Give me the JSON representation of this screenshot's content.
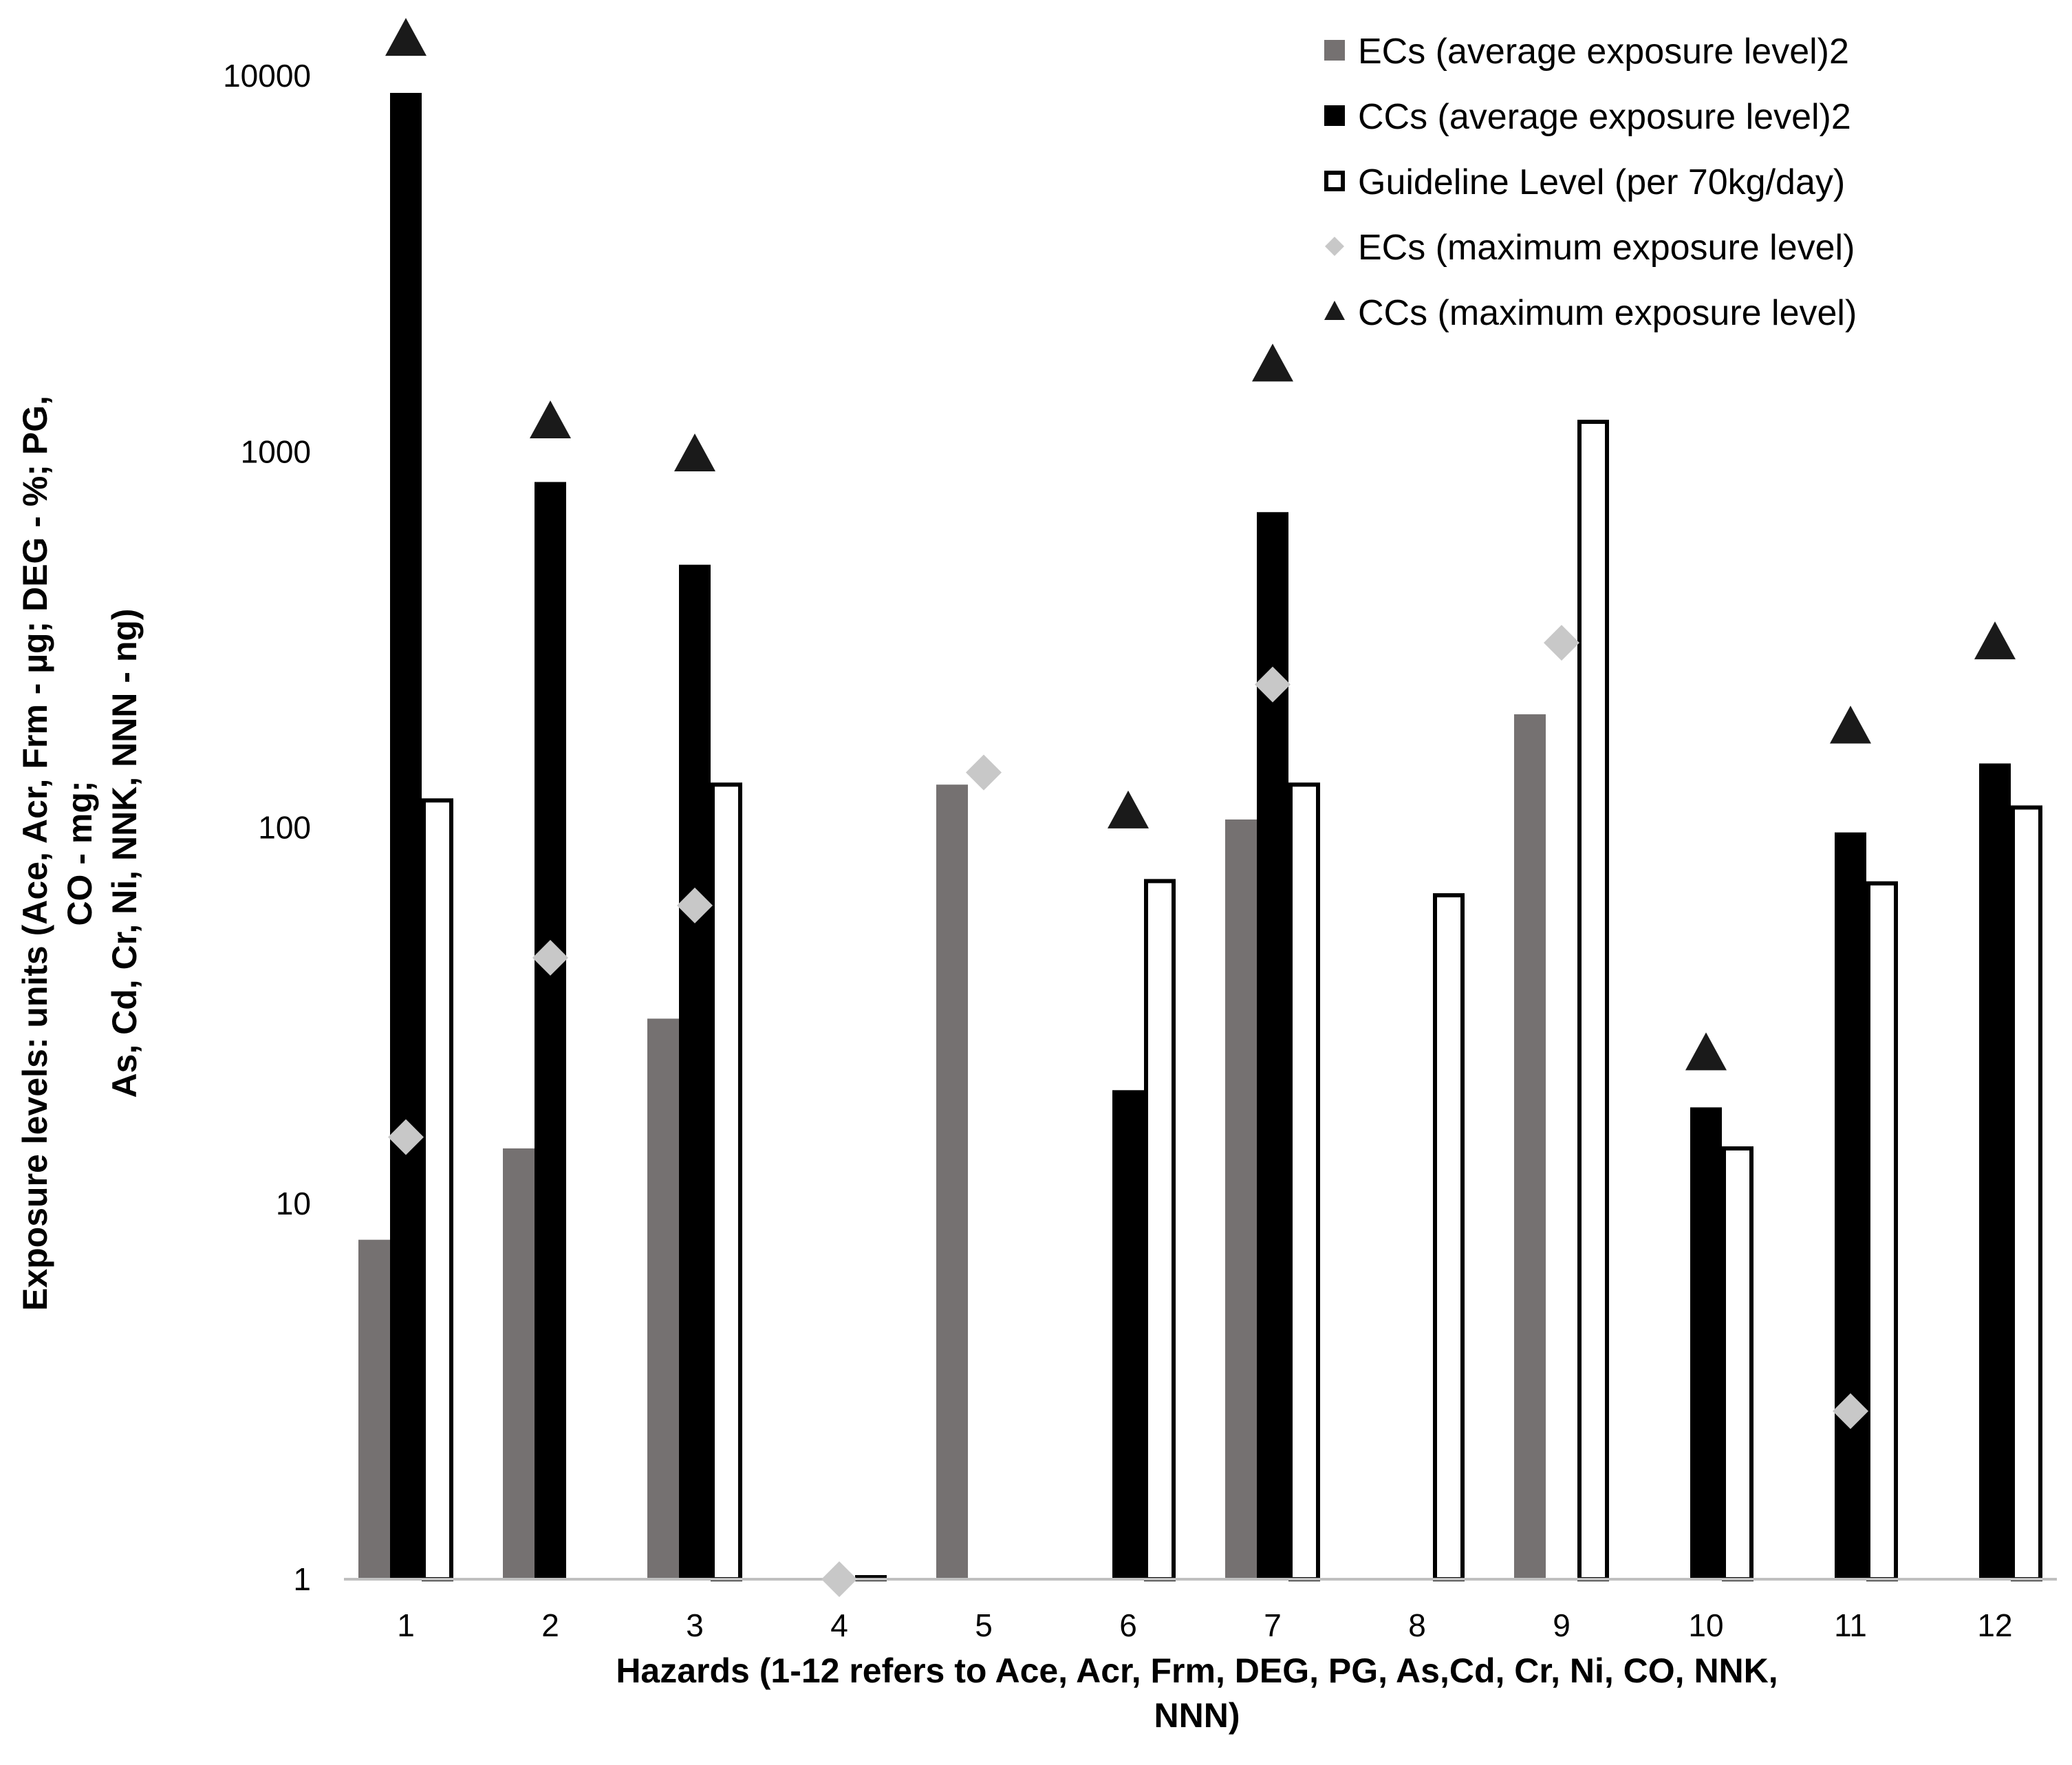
{
  "chart_data": {
    "type": "bar",
    "y_scale": "log",
    "ylim": [
      1,
      10000
    ],
    "y_ticks": [
      "1",
      "10",
      "100",
      "1000",
      "10000"
    ],
    "categories": [
      "1",
      "2",
      "3",
      "4",
      "5",
      "6",
      "7",
      "8",
      "9",
      "10",
      "11",
      "12"
    ],
    "xlabel": "Hazards (1-12 refers to Ace, Acr, Frm, DEG, PG, As,Cd, Cr, Ni, CO, NNK, NNN)",
    "ylabel": "Exposure levels: units (Ace, Acr, Frm - µg; DEG - %; PG, CO - mg; As, Cd, Cr, Ni, NNK, NNN - ng)",
    "legend_position": "top-right",
    "grid": false,
    "series": [
      {
        "name": "ECs (average exposure level)2",
        "kind": "bar",
        "color": "#757171",
        "values": [
          8,
          14,
          31,
          null,
          130,
          null,
          105,
          null,
          200,
          null,
          null,
          null
        ]
      },
      {
        "name": "CCs (average exposure level)2",
        "kind": "bar",
        "color": "#000000",
        "values": [
          9000,
          830,
          500,
          null,
          null,
          20,
          690,
          null,
          null,
          18,
          97,
          148
        ]
      },
      {
        "name": "Guideline Level (per 70kg/day)",
        "kind": "bar-outline",
        "color": "#000000",
        "values": [
          118,
          null,
          130,
          1,
          null,
          72,
          130,
          66,
          1200,
          14,
          71,
          113
        ]
      },
      {
        "name": "ECs (maximum exposure level)",
        "kind": "marker-diamond",
        "color": "#c8c8c8",
        "values": [
          15,
          45,
          62,
          1,
          140,
          null,
          240,
          null,
          310,
          null,
          2.8,
          null
        ]
      },
      {
        "name": "CCs (maximum exposure level)",
        "kind": "marker-triangle",
        "color": "#1a1a1a",
        "values": [
          12500,
          1200,
          980,
          null,
          null,
          110,
          1700,
          null,
          null,
          25,
          185,
          310
        ]
      }
    ]
  }
}
